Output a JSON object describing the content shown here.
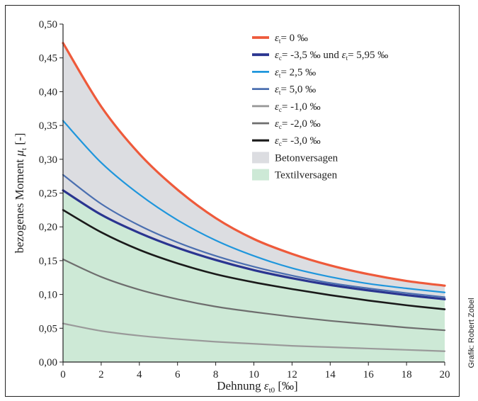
{
  "chart_data": {
    "type": "line",
    "xlabel": "Dehnung ε_t0 [‰]",
    "ylabel": "bezogenes Moment μ_t [-]",
    "xlim": [
      0,
      20
    ],
    "ylim": [
      0,
      0.5
    ],
    "x_ticks": [
      "0",
      "2",
      "4",
      "6",
      "8",
      "10",
      "12",
      "14",
      "16",
      "18",
      "20"
    ],
    "y_ticks": [
      "0,00",
      "0,05",
      "0,10",
      "0,15",
      "0,20",
      "0,25",
      "0,30",
      "0,35",
      "0,40",
      "0,45",
      "0,50"
    ],
    "grid": false,
    "legend_position": "top-right",
    "x": [
      0,
      2,
      4,
      6,
      8,
      10,
      12,
      14,
      16,
      18,
      20
    ],
    "series": [
      {
        "name": "ε_t = 0 ‰",
        "color": "#ee5a3b",
        "width": 3.2,
        "values": [
          0.472,
          0.378,
          0.308,
          0.255,
          0.213,
          0.182,
          0.16,
          0.143,
          0.13,
          0.12,
          0.113
        ]
      },
      {
        "name": "ε_c = -3,5 ‰ und ε_t = 5,95 ‰",
        "color": "#2a3590",
        "width": 3.2,
        "values": [
          0.254,
          0.218,
          0.191,
          0.169,
          0.151,
          0.136,
          0.124,
          0.114,
          0.106,
          0.099,
          0.093
        ]
      },
      {
        "name": "ε_t = 2,5 ‰",
        "color": "#1f96dc",
        "width": 2.2,
        "values": [
          0.357,
          0.295,
          0.248,
          0.21,
          0.18,
          0.157,
          0.139,
          0.126,
          0.116,
          0.109,
          0.103
        ]
      },
      {
        "name": "ε_t = 5,0 ‰",
        "color": "#4b6fb0",
        "width": 2.2,
        "values": [
          0.277,
          0.234,
          0.202,
          0.177,
          0.157,
          0.141,
          0.128,
          0.117,
          0.109,
          0.102,
          0.096
        ]
      },
      {
        "name": "ε_c = -1,0 ‰",
        "color": "#9a9a9a",
        "width": 2.2,
        "values": [
          0.057,
          0.046,
          0.039,
          0.034,
          0.03,
          0.027,
          0.024,
          0.022,
          0.02,
          0.018,
          0.016
        ]
      },
      {
        "name": "ε_c = -2,0 ‰",
        "color": "#6e6e6e",
        "width": 2.2,
        "values": [
          0.152,
          0.126,
          0.107,
          0.093,
          0.082,
          0.074,
          0.067,
          0.061,
          0.056,
          0.051,
          0.047
        ]
      },
      {
        "name": "ε_c = -3,0 ‰",
        "color": "#1a1a1a",
        "width": 2.6,
        "values": [
          0.225,
          0.192,
          0.166,
          0.146,
          0.13,
          0.118,
          0.108,
          0.099,
          0.091,
          0.084,
          0.078
        ]
      }
    ],
    "areas": [
      {
        "name": "Betonversagen",
        "color": "#dcdde1"
      },
      {
        "name": "Textilversagen",
        "color": "#cde9d6"
      }
    ]
  },
  "legend": {
    "items": [
      {
        "kind": "line",
        "color": "#ee5a3b",
        "width": 3.2,
        "sym": "ε",
        "sub": "t",
        "text": "= 0 ‰"
      },
      {
        "kind": "line",
        "color": "#2a3590",
        "width": 3.2,
        "sym": "ε",
        "sub": "c",
        "text": "= -3,5 ‰ und ",
        "sym2": "ε",
        "sub2": "t",
        "text2": "= 5,95 ‰"
      },
      {
        "kind": "line",
        "color": "#1f96dc",
        "width": 2.2,
        "sym": "ε",
        "sub": "t",
        "text": "= 2,5 ‰"
      },
      {
        "kind": "line",
        "color": "#4b6fb0",
        "width": 2.2,
        "sym": "ε",
        "sub": "t",
        "text": "= 5,0 ‰"
      },
      {
        "kind": "line",
        "color": "#9a9a9a",
        "width": 2.2,
        "sym": "ε",
        "sub": "c",
        "text": "= -1,0 ‰"
      },
      {
        "kind": "line",
        "color": "#6e6e6e",
        "width": 2.2,
        "sym": "ε",
        "sub": "c",
        "text": "= -2,0 ‰"
      },
      {
        "kind": "line",
        "color": "#1a1a1a",
        "width": 2.6,
        "sym": "ε",
        "sub": "c",
        "text": "= -3,0 ‰"
      },
      {
        "kind": "area",
        "color": "#dcdde1",
        "text": "Betonversagen"
      },
      {
        "kind": "area",
        "color": "#cde9d6",
        "text": "Textilversagen"
      }
    ]
  },
  "credit": "Grafik: Robert Zobel"
}
